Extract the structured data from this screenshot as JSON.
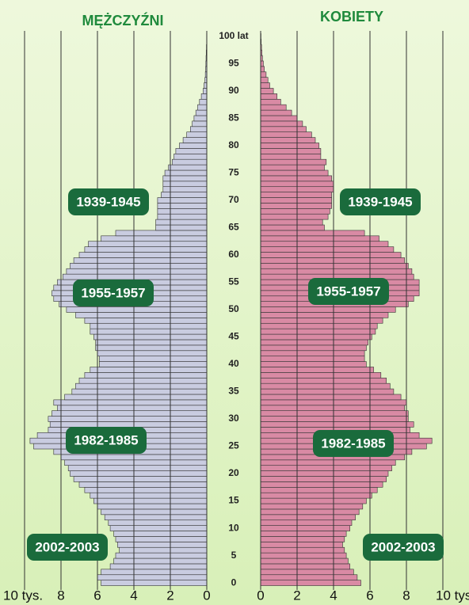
{
  "chart_data": {
    "type": "pyramid",
    "y": [
      0,
      1,
      2,
      3,
      4,
      5,
      6,
      7,
      8,
      9,
      10,
      11,
      12,
      13,
      14,
      15,
      16,
      17,
      18,
      19,
      20,
      21,
      22,
      23,
      24,
      25,
      26,
      27,
      28,
      29,
      30,
      31,
      32,
      33,
      34,
      35,
      36,
      37,
      38,
      39,
      40,
      41,
      42,
      43,
      44,
      45,
      46,
      47,
      48,
      49,
      50,
      51,
      52,
      53,
      54,
      55,
      56,
      57,
      58,
      59,
      60,
      61,
      62,
      63,
      64,
      65,
      66,
      67,
      68,
      69,
      70,
      71,
      72,
      73,
      74,
      75,
      76,
      77,
      78,
      79,
      80,
      81,
      82,
      83,
      84,
      85,
      86,
      87,
      88,
      89,
      90,
      91,
      92,
      93,
      94,
      95,
      96,
      97,
      98,
      99,
      100
    ],
    "series": [
      {
        "name": "MĘŻCZYŹNI",
        "color": "#c9cce0",
        "values": [
          5.8,
          6.0,
          5.8,
          5.3,
          5.1,
          5.0,
          4.8,
          4.9,
          5.0,
          5.1,
          5.3,
          5.4,
          5.6,
          5.8,
          6.0,
          6.2,
          6.4,
          6.7,
          7.0,
          7.3,
          7.5,
          7.6,
          7.8,
          8.0,
          8.4,
          9.5,
          9.7,
          9.3,
          8.7,
          8.6,
          8.7,
          8.5,
          8.2,
          8.4,
          7.8,
          7.4,
          7.2,
          7.0,
          6.7,
          6.4,
          5.9,
          5.9,
          6.0,
          6.1,
          6.1,
          6.2,
          6.4,
          6.4,
          6.7,
          7.2,
          7.7,
          8.1,
          8.4,
          8.5,
          8.4,
          8.2,
          7.9,
          7.7,
          7.5,
          7.3,
          7.0,
          6.7,
          6.5,
          5.8,
          5.0,
          2.8,
          2.8,
          2.7,
          2.7,
          2.7,
          2.7,
          2.5,
          2.4,
          2.4,
          2.4,
          2.3,
          2.1,
          1.9,
          1.8,
          1.7,
          1.5,
          1.3,
          1.1,
          0.9,
          0.8,
          0.7,
          0.6,
          0.5,
          0.4,
          0.3,
          0.2,
          0.15,
          0.1,
          0.08,
          0.06,
          0.05,
          0.04,
          0.03,
          0.02,
          0.01,
          0.01
        ]
      },
      {
        "name": "KOBIETY",
        "color": "#d98aa4",
        "values": [
          5.5,
          5.3,
          5.1,
          4.9,
          4.8,
          4.7,
          4.6,
          4.5,
          4.6,
          4.7,
          4.9,
          5.0,
          5.2,
          5.4,
          5.6,
          5.8,
          6.1,
          6.4,
          6.7,
          6.9,
          7.0,
          7.2,
          7.4,
          7.9,
          8.3,
          9.1,
          9.4,
          8.7,
          8.2,
          8.4,
          8.1,
          8.1,
          7.9,
          8.0,
          7.7,
          7.3,
          7.1,
          6.9,
          6.6,
          6.2,
          5.8,
          5.7,
          5.7,
          5.8,
          5.9,
          6.1,
          6.3,
          6.4,
          6.7,
          7.0,
          7.4,
          8.1,
          8.4,
          8.7,
          8.7,
          8.7,
          8.4,
          8.3,
          8.1,
          7.9,
          7.7,
          7.3,
          7.0,
          6.5,
          5.7,
          3.5,
          3.4,
          3.7,
          3.8,
          3.9,
          3.9,
          3.9,
          4.0,
          4.0,
          3.9,
          3.7,
          3.5,
          3.6,
          3.3,
          3.3,
          3.2,
          3.0,
          2.8,
          2.5,
          2.3,
          2.0,
          1.7,
          1.4,
          1.1,
          0.9,
          0.7,
          0.5,
          0.4,
          0.3,
          0.2,
          0.15,
          0.1,
          0.07,
          0.05,
          0.03,
          0.02
        ]
      }
    ],
    "xlim": [
      0,
      10
    ],
    "xticks": [
      0,
      2,
      4,
      6,
      8,
      {
        "value": 10,
        "label": "10 tys."
      }
    ],
    "ylim": [
      -1,
      101
    ],
    "yticks": [
      0,
      5,
      10,
      15,
      20,
      25,
      30,
      35,
      40,
      45,
      50,
      55,
      60,
      65,
      70,
      75,
      80,
      85,
      90,
      95,
      {
        "value": 100,
        "label": "100 lat"
      }
    ],
    "annotations": [
      "1939-1945",
      "1955-1957",
      "1982-1985",
      "2002-2003"
    ]
  }
}
